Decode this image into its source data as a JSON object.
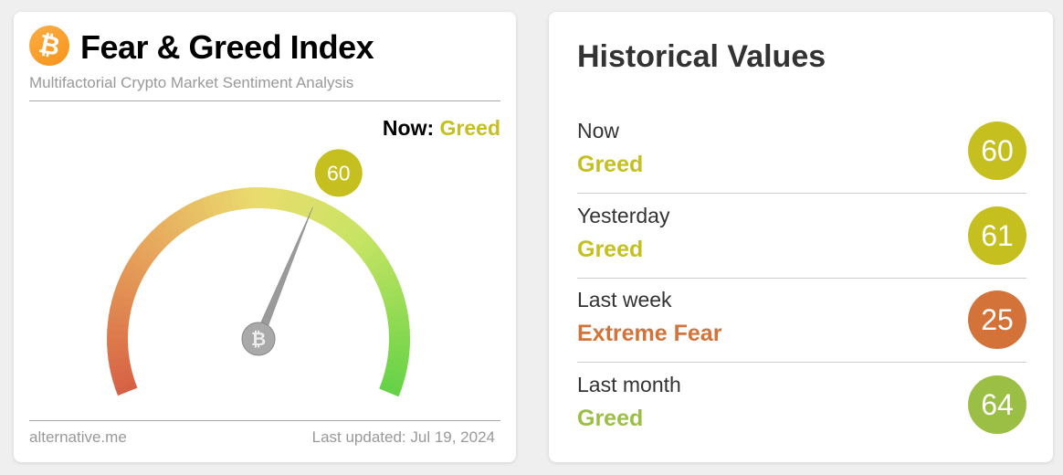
{
  "left": {
    "logo_icon": "bitcoin-icon",
    "title": "Fear & Greed Index",
    "subtitle": "Multifactorial Crypto Market Sentiment Analysis",
    "now_label": "Now:",
    "now_class": "Greed",
    "now_value": "60",
    "gauge": {
      "value": 60,
      "min": 0,
      "max": 100
    },
    "footer_source": "alternative.me",
    "footer_updated": "Last updated: Jul 19, 2024"
  },
  "right": {
    "title": "Historical Values",
    "rows": [
      {
        "when": "Now",
        "class": "Greed",
        "value": "60",
        "color": "#c5c020"
      },
      {
        "when": "Yesterday",
        "class": "Greed",
        "value": "61",
        "color": "#c5c020"
      },
      {
        "when": "Last week",
        "class": "Extreme Fear",
        "value": "25",
        "color": "#d3733a"
      },
      {
        "when": "Last month",
        "class": "Greed",
        "value": "64",
        "color": "#9bbf45"
      }
    ]
  },
  "colors": {
    "greed": "#c5c020",
    "extreme_fear": "#d3733a",
    "greed_high": "#9bbf45"
  }
}
